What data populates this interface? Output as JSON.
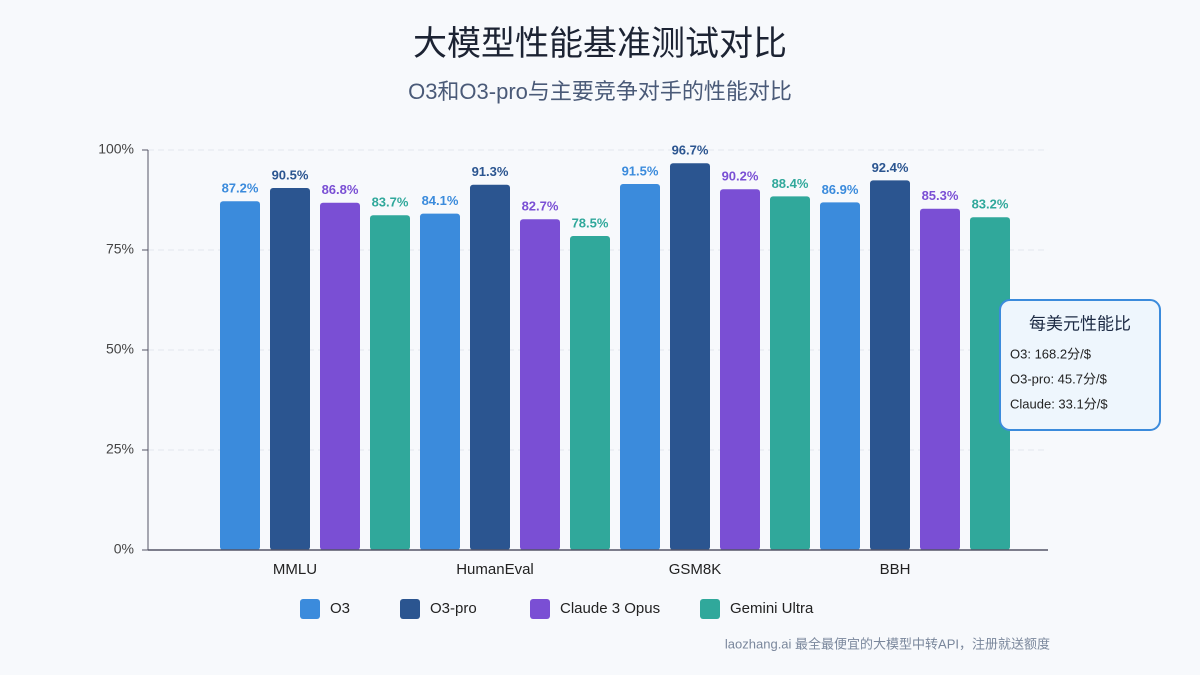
{
  "chart_data": {
    "type": "bar",
    "title": "大模型性能基准测试对比",
    "subtitle": "O3和O3-pro与主要竞争对手的性能对比",
    "categories": [
      "MMLU",
      "HumanEval",
      "GSM8K",
      "BBH"
    ],
    "series": [
      {
        "name": "O3",
        "color": "#3b8bdc",
        "values": [
          87.2,
          84.1,
          91.5,
          86.9
        ],
        "value_labels": [
          "87.2%",
          "84.1%",
          "91.5%",
          "86.9%"
        ]
      },
      {
        "name": "O3-pro",
        "color": "#2b5590",
        "values": [
          90.5,
          91.3,
          96.7,
          92.4
        ],
        "value_labels": [
          "90.5%",
          "91.3%",
          "96.7%",
          "92.4%"
        ]
      },
      {
        "name": "Claude 3 Opus",
        "color": "#7a4fd4",
        "values": [
          86.8,
          82.7,
          90.2,
          85.3
        ],
        "value_labels": [
          "86.8%",
          "82.7%",
          "90.2%",
          "85.3%"
        ]
      },
      {
        "name": "Gemini Ultra",
        "color": "#30a89b",
        "values": [
          83.7,
          78.5,
          88.4,
          83.2
        ],
        "value_labels": [
          "83.7%",
          "78.5%",
          "88.4%",
          "83.2%"
        ]
      }
    ],
    "ylim": [
      0,
      100
    ],
    "yticks": [
      {
        "value": 0,
        "label": "0%"
      },
      {
        "value": 25,
        "label": "25%"
      },
      {
        "value": 50,
        "label": "50%"
      },
      {
        "value": 75,
        "label": "75%"
      },
      {
        "value": 100,
        "label": "100%"
      }
    ],
    "grid": true,
    "annotation": {
      "title": "每美元性能比",
      "lines": [
        "O3: 168.2分/$",
        "O3-pro: 45.7分/$",
        "Claude: 33.1分/$"
      ]
    },
    "footer": "laozhang.ai 最全最便宜的大模型中转API，注册就送额度"
  }
}
